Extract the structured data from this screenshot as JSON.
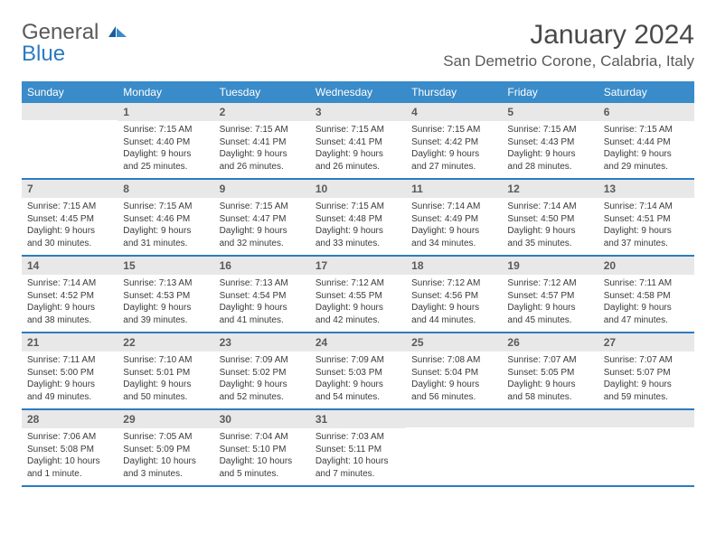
{
  "brand": {
    "word1": "General",
    "word2": "Blue"
  },
  "title": "January 2024",
  "location": "San Demetrio Corone, Calabria, Italy",
  "colors": {
    "header_bg": "#3a8bc9",
    "header_text": "#ffffff",
    "rule": "#2d7bc0",
    "daynum_bg": "#e8e8e8",
    "text": "#3a3a3a",
    "brand_gray": "#5a5a5a",
    "brand_blue": "#2d7bc0"
  },
  "dow": [
    "Sunday",
    "Monday",
    "Tuesday",
    "Wednesday",
    "Thursday",
    "Friday",
    "Saturday"
  ],
  "weeks": [
    [
      {
        "n": "",
        "t": ""
      },
      {
        "n": "1",
        "t": "Sunrise: 7:15 AM\nSunset: 4:40 PM\nDaylight: 9 hours\nand 25 minutes."
      },
      {
        "n": "2",
        "t": "Sunrise: 7:15 AM\nSunset: 4:41 PM\nDaylight: 9 hours\nand 26 minutes."
      },
      {
        "n": "3",
        "t": "Sunrise: 7:15 AM\nSunset: 4:41 PM\nDaylight: 9 hours\nand 26 minutes."
      },
      {
        "n": "4",
        "t": "Sunrise: 7:15 AM\nSunset: 4:42 PM\nDaylight: 9 hours\nand 27 minutes."
      },
      {
        "n": "5",
        "t": "Sunrise: 7:15 AM\nSunset: 4:43 PM\nDaylight: 9 hours\nand 28 minutes."
      },
      {
        "n": "6",
        "t": "Sunrise: 7:15 AM\nSunset: 4:44 PM\nDaylight: 9 hours\nand 29 minutes."
      }
    ],
    [
      {
        "n": "7",
        "t": "Sunrise: 7:15 AM\nSunset: 4:45 PM\nDaylight: 9 hours\nand 30 minutes."
      },
      {
        "n": "8",
        "t": "Sunrise: 7:15 AM\nSunset: 4:46 PM\nDaylight: 9 hours\nand 31 minutes."
      },
      {
        "n": "9",
        "t": "Sunrise: 7:15 AM\nSunset: 4:47 PM\nDaylight: 9 hours\nand 32 minutes."
      },
      {
        "n": "10",
        "t": "Sunrise: 7:15 AM\nSunset: 4:48 PM\nDaylight: 9 hours\nand 33 minutes."
      },
      {
        "n": "11",
        "t": "Sunrise: 7:14 AM\nSunset: 4:49 PM\nDaylight: 9 hours\nand 34 minutes."
      },
      {
        "n": "12",
        "t": "Sunrise: 7:14 AM\nSunset: 4:50 PM\nDaylight: 9 hours\nand 35 minutes."
      },
      {
        "n": "13",
        "t": "Sunrise: 7:14 AM\nSunset: 4:51 PM\nDaylight: 9 hours\nand 37 minutes."
      }
    ],
    [
      {
        "n": "14",
        "t": "Sunrise: 7:14 AM\nSunset: 4:52 PM\nDaylight: 9 hours\nand 38 minutes."
      },
      {
        "n": "15",
        "t": "Sunrise: 7:13 AM\nSunset: 4:53 PM\nDaylight: 9 hours\nand 39 minutes."
      },
      {
        "n": "16",
        "t": "Sunrise: 7:13 AM\nSunset: 4:54 PM\nDaylight: 9 hours\nand 41 minutes."
      },
      {
        "n": "17",
        "t": "Sunrise: 7:12 AM\nSunset: 4:55 PM\nDaylight: 9 hours\nand 42 minutes."
      },
      {
        "n": "18",
        "t": "Sunrise: 7:12 AM\nSunset: 4:56 PM\nDaylight: 9 hours\nand 44 minutes."
      },
      {
        "n": "19",
        "t": "Sunrise: 7:12 AM\nSunset: 4:57 PM\nDaylight: 9 hours\nand 45 minutes."
      },
      {
        "n": "20",
        "t": "Sunrise: 7:11 AM\nSunset: 4:58 PM\nDaylight: 9 hours\nand 47 minutes."
      }
    ],
    [
      {
        "n": "21",
        "t": "Sunrise: 7:11 AM\nSunset: 5:00 PM\nDaylight: 9 hours\nand 49 minutes."
      },
      {
        "n": "22",
        "t": "Sunrise: 7:10 AM\nSunset: 5:01 PM\nDaylight: 9 hours\nand 50 minutes."
      },
      {
        "n": "23",
        "t": "Sunrise: 7:09 AM\nSunset: 5:02 PM\nDaylight: 9 hours\nand 52 minutes."
      },
      {
        "n": "24",
        "t": "Sunrise: 7:09 AM\nSunset: 5:03 PM\nDaylight: 9 hours\nand 54 minutes."
      },
      {
        "n": "25",
        "t": "Sunrise: 7:08 AM\nSunset: 5:04 PM\nDaylight: 9 hours\nand 56 minutes."
      },
      {
        "n": "26",
        "t": "Sunrise: 7:07 AM\nSunset: 5:05 PM\nDaylight: 9 hours\nand 58 minutes."
      },
      {
        "n": "27",
        "t": "Sunrise: 7:07 AM\nSunset: 5:07 PM\nDaylight: 9 hours\nand 59 minutes."
      }
    ],
    [
      {
        "n": "28",
        "t": "Sunrise: 7:06 AM\nSunset: 5:08 PM\nDaylight: 10 hours\nand 1 minute."
      },
      {
        "n": "29",
        "t": "Sunrise: 7:05 AM\nSunset: 5:09 PM\nDaylight: 10 hours\nand 3 minutes."
      },
      {
        "n": "30",
        "t": "Sunrise: 7:04 AM\nSunset: 5:10 PM\nDaylight: 10 hours\nand 5 minutes."
      },
      {
        "n": "31",
        "t": "Sunrise: 7:03 AM\nSunset: 5:11 PM\nDaylight: 10 hours\nand 7 minutes."
      },
      {
        "n": "",
        "t": ""
      },
      {
        "n": "",
        "t": ""
      },
      {
        "n": "",
        "t": ""
      }
    ]
  ]
}
